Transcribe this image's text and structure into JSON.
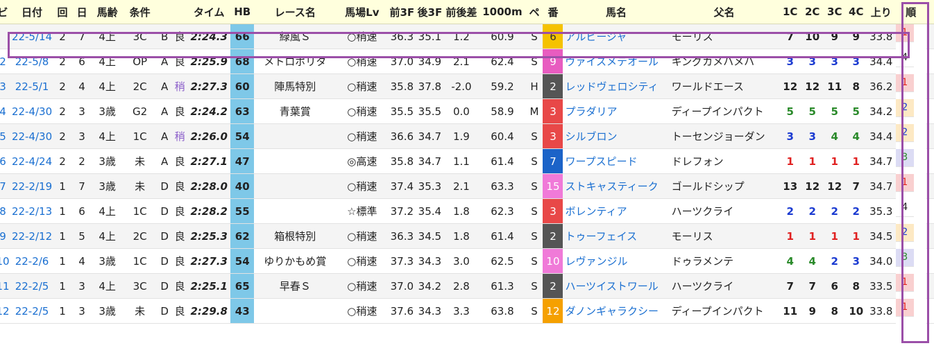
{
  "headers": [
    "ビ",
    "日付",
    "回",
    "日",
    "馬齢",
    "条件",
    "",
    "",
    "タイム",
    "HB",
    "レース名",
    "馬場Lv",
    "前3F",
    "後3F",
    "前後差",
    "1000m",
    "ペ",
    "番",
    "馬名",
    "父名",
    "1C",
    "2C",
    "3C",
    "4C",
    "上り",
    "順"
  ],
  "colors": {
    "highlight": "#9b4fa8",
    "hb": "#7ec8e8",
    "header": "#ffffdd",
    "link": "#1a6fd1",
    "pos_red": "#e02020",
    "pos_green": "#2a8a2a",
    "pos_blue": "#1a3ad1",
    "fin_red": "#f9d0d0",
    "fin_yellow": "#fde9c4",
    "fin_lav": "#dcdcf4",
    "fin_green": "#e2efda"
  },
  "rows": [
    {
      "idx": "",
      "date": "22-5/14",
      "kai": "2",
      "nichi": "7",
      "age": "4上",
      "cls": "3C",
      "grade": "B",
      "cond": "良",
      "time": "2:24.3",
      "hb": "66",
      "race": "緑風Ｓ",
      "lv": "○稍速",
      "f3": "36.3",
      "l3": "35.1",
      "diff": "1.2",
      "m1000": "60.9",
      "pace": "S",
      "num": "6",
      "num_bg": "#f5c200",
      "num_fg": "#333333",
      "horse": "アルビージャ",
      "sire": "モーリス",
      "c1": "7",
      "c2": "10",
      "c3": "9",
      "c4": "9",
      "last": "33.8",
      "fin": "1",
      "fin_bg": "#f9d0d0",
      "fin_fg": "#e02020"
    },
    {
      "idx": "2",
      "date": "22-5/8",
      "kai": "2",
      "nichi": "6",
      "age": "4上",
      "cls": "OP",
      "grade": "A",
      "cond": "良",
      "time": "2:25.9",
      "hb": "68",
      "race": "メトロポリタ",
      "lv": "○稍速",
      "f3": "37.0",
      "l3": "34.9",
      "diff": "2.1",
      "m1000": "62.4",
      "pace": "S",
      "num": "9",
      "num_bg": "#e85cc0",
      "num_fg": "#ffffff",
      "horse": "ヴァイスメテオール",
      "sire": "キングカメハメハ",
      "c1": "3",
      "c2": "3",
      "c3": "3",
      "c4": "3",
      "last": "34.4",
      "fin": "4",
      "fin_bg": "#ffffff",
      "fin_fg": "#222222"
    },
    {
      "idx": "3",
      "date": "22-5/1",
      "kai": "2",
      "nichi": "4",
      "age": "4上",
      "cls": "2C",
      "grade": "A",
      "cond": "稍",
      "time": "2:27.3",
      "hb": "60",
      "race": "陣馬特別",
      "lv": "○稍速",
      "f3": "35.8",
      "l3": "37.8",
      "diff": "-2.0",
      "m1000": "59.2",
      "pace": "H",
      "num": "2",
      "num_bg": "#555555",
      "num_fg": "#ffffff",
      "horse": "レッドヴェロシティ",
      "sire": "ワールドエース",
      "c1": "12",
      "c2": "12",
      "c3": "11",
      "c4": "8",
      "last": "36.2",
      "fin": "1",
      "fin_bg": "#f9d0d0",
      "fin_fg": "#e02020"
    },
    {
      "idx": "4",
      "date": "22-4/30",
      "kai": "2",
      "nichi": "3",
      "age": "3歳",
      "cls": "G2",
      "grade": "A",
      "cond": "良",
      "time": "2:24.2",
      "hb": "63",
      "race": "青葉賞",
      "lv": "○稍速",
      "f3": "35.5",
      "l3": "35.5",
      "diff": "0.0",
      "m1000": "58.9",
      "pace": "M",
      "num": "3",
      "num_bg": "#e84848",
      "num_fg": "#ffffff",
      "horse": "プラダリア",
      "sire": "ディープインパクト",
      "c1": "5",
      "c2": "5",
      "c3": "5",
      "c4": "5",
      "last": "34.2",
      "fin": "2",
      "fin_bg": "#fde9c4",
      "fin_fg": "#1a3ad1"
    },
    {
      "idx": "5",
      "date": "22-4/30",
      "kai": "2",
      "nichi": "3",
      "age": "4上",
      "cls": "1C",
      "grade": "A",
      "cond": "稍",
      "time": "2:26.0",
      "hb": "54",
      "race": "",
      "lv": "○稍速",
      "f3": "36.6",
      "l3": "34.7",
      "diff": "1.9",
      "m1000": "60.4",
      "pace": "S",
      "num": "3",
      "num_bg": "#e84848",
      "num_fg": "#ffffff",
      "horse": "シルブロン",
      "sire": "トーセンジョーダン",
      "c1": "3",
      "c2": "3",
      "c3": "4",
      "c4": "4",
      "last": "34.4",
      "fin": "2",
      "fin_bg": "#fde9c4",
      "fin_fg": "#1a3ad1"
    },
    {
      "idx": "6",
      "date": "22-4/24",
      "kai": "2",
      "nichi": "2",
      "age": "3歳",
      "cls": "未",
      "grade": "A",
      "cond": "良",
      "time": "2:27.1",
      "hb": "47",
      "race": "",
      "lv": "◎高速",
      "f3": "35.8",
      "l3": "34.7",
      "diff": "1.1",
      "m1000": "61.4",
      "pace": "S",
      "num": "7",
      "num_bg": "#1b63c8",
      "num_fg": "#ffffff",
      "horse": "ワープスピード",
      "sire": "ドレフォン",
      "c1": "1",
      "c2": "1",
      "c3": "1",
      "c4": "1",
      "last": "34.7",
      "fin": "3",
      "fin_bg": "#dcdcf4",
      "fin_fg": "#2a8a2a"
    },
    {
      "idx": "7",
      "date": "22-2/19",
      "kai": "1",
      "nichi": "7",
      "age": "3歳",
      "cls": "未",
      "grade": "D",
      "cond": "良",
      "time": "2:28.0",
      "hb": "40",
      "race": "",
      "lv": "○稍速",
      "f3": "37.4",
      "l3": "35.3",
      "diff": "2.1",
      "m1000": "63.3",
      "pace": "S",
      "num": "15",
      "num_bg": "#f07ad8",
      "num_fg": "#ffffff",
      "horse": "ストキャスティーク",
      "sire": "ゴールドシップ",
      "c1": "13",
      "c2": "12",
      "c3": "12",
      "c4": "7",
      "last": "34.7",
      "fin": "1",
      "fin_bg": "#f9d0d0",
      "fin_fg": "#e02020"
    },
    {
      "idx": "8",
      "date": "22-2/13",
      "kai": "1",
      "nichi": "6",
      "age": "4上",
      "cls": "1C",
      "grade": "D",
      "cond": "良",
      "time": "2:28.2",
      "hb": "55",
      "race": "",
      "lv": "☆標準",
      "f3": "37.2",
      "l3": "35.4",
      "diff": "1.8",
      "m1000": "62.3",
      "pace": "S",
      "num": "3",
      "num_bg": "#e84848",
      "num_fg": "#ffffff",
      "horse": "ボレンティア",
      "sire": "ハーツクライ",
      "c1": "2",
      "c2": "2",
      "c3": "2",
      "c4": "2",
      "last": "35.3",
      "fin": "4",
      "fin_bg": "#ffffff",
      "fin_fg": "#222222"
    },
    {
      "idx": "9",
      "date": "22-2/12",
      "kai": "1",
      "nichi": "5",
      "age": "4上",
      "cls": "2C",
      "grade": "D",
      "cond": "良",
      "time": "2:25.3",
      "hb": "62",
      "race": "箱根特別",
      "lv": "○稍速",
      "f3": "36.3",
      "l3": "34.5",
      "diff": "1.8",
      "m1000": "61.4",
      "pace": "S",
      "num": "2",
      "num_bg": "#555555",
      "num_fg": "#ffffff",
      "horse": "トゥーフェイス",
      "sire": "モーリス",
      "c1": "1",
      "c2": "1",
      "c3": "1",
      "c4": "1",
      "last": "34.5",
      "fin": "2",
      "fin_bg": "#fde9c4",
      "fin_fg": "#1a3ad1"
    },
    {
      "idx": "10",
      "date": "22-2/6",
      "kai": "1",
      "nichi": "4",
      "age": "3歳",
      "cls": "1C",
      "grade": "D",
      "cond": "良",
      "time": "2:27.3",
      "hb": "54",
      "race": "ゆりかもめ賞",
      "lv": "○稍速",
      "f3": "37.3",
      "l3": "34.3",
      "diff": "3.0",
      "m1000": "62.5",
      "pace": "S",
      "num": "10",
      "num_bg": "#f07ad8",
      "num_fg": "#ffffff",
      "horse": "レヴァンジル",
      "sire": "ドゥラメンテ",
      "c1": "4",
      "c2": "4",
      "c3": "2",
      "c4": "3",
      "last": "34.0",
      "fin": "3",
      "fin_bg": "#dcdcf4",
      "fin_fg": "#2a8a2a"
    },
    {
      "idx": "11",
      "date": "22-2/5",
      "kai": "1",
      "nichi": "3",
      "age": "4上",
      "cls": "3C",
      "grade": "D",
      "cond": "良",
      "time": "2:25.1",
      "hb": "65",
      "race": "早春Ｓ",
      "lv": "○稍速",
      "f3": "37.0",
      "l3": "34.2",
      "diff": "2.8",
      "m1000": "61.3",
      "pace": "S",
      "num": "2",
      "num_bg": "#555555",
      "num_fg": "#ffffff",
      "horse": "ハーツイストワール",
      "sire": "ハーツクライ",
      "c1": "7",
      "c2": "7",
      "c3": "6",
      "c4": "8",
      "last": "33.5",
      "fin": "1",
      "fin_bg": "#f9d0d0",
      "fin_fg": "#e02020"
    },
    {
      "idx": "12",
      "date": "22-2/5",
      "kai": "1",
      "nichi": "3",
      "age": "3歳",
      "cls": "未",
      "grade": "D",
      "cond": "良",
      "time": "2:29.8",
      "hb": "43",
      "race": "",
      "lv": "○稍速",
      "f3": "37.6",
      "l3": "34.3",
      "diff": "3.3",
      "m1000": "63.8",
      "pace": "S",
      "num": "12",
      "num_bg": "#f5a000",
      "num_fg": "#ffffff",
      "horse": "ダノンギャラクシー",
      "sire": "ディープインパクト",
      "c1": "11",
      "c2": "9",
      "c3": "8",
      "c4": "10",
      "last": "33.8",
      "fin": "1",
      "fin_bg": "#f9d0d0",
      "fin_fg": "#e02020"
    }
  ]
}
